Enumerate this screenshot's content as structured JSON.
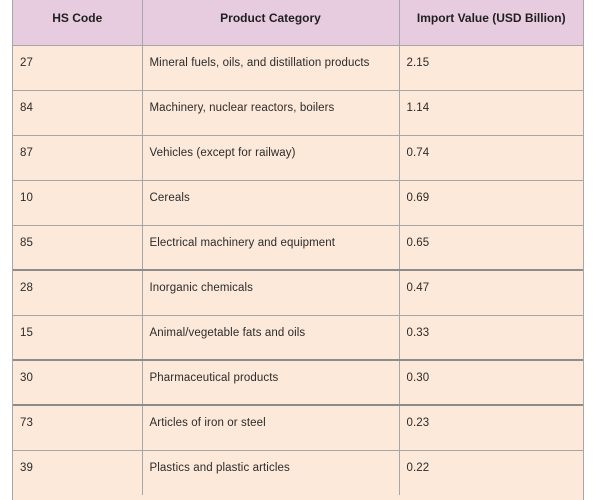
{
  "chart_data": {
    "type": "table",
    "columns": [
      "HS Code",
      "Product Category",
      "Import Value (USD Billion)"
    ],
    "rows": [
      {
        "code": "27",
        "category": "Mineral fuels, oils, and distillation products",
        "value": "2.15"
      },
      {
        "code": "84",
        "category": "Machinery, nuclear reactors, boilers",
        "value": "1.14"
      },
      {
        "code": "87",
        "category": "Vehicles (except for railway)",
        "value": "0.74"
      },
      {
        "code": "10",
        "category": "Cereals",
        "value": "0.69"
      },
      {
        "code": "85",
        "category": "Electrical machinery and equipment",
        "value": "0.65"
      },
      {
        "code": "28",
        "category": "Inorganic chemicals",
        "value": "0.47"
      },
      {
        "code": "15",
        "category": "Animal/vegetable fats and oils",
        "value": "0.33"
      },
      {
        "code": "30",
        "category": "Pharmaceutical products",
        "value": "0.30"
      },
      {
        "code": "73",
        "category": "Articles of iron or steel",
        "value": "0.23"
      },
      {
        "code": "39",
        "category": "Plastics and plastic articles",
        "value": "0.22"
      }
    ],
    "colors": {
      "header_bg": "#e6ccde",
      "body_bg": "#fde9d9",
      "border": "#a6a6a6"
    }
  }
}
